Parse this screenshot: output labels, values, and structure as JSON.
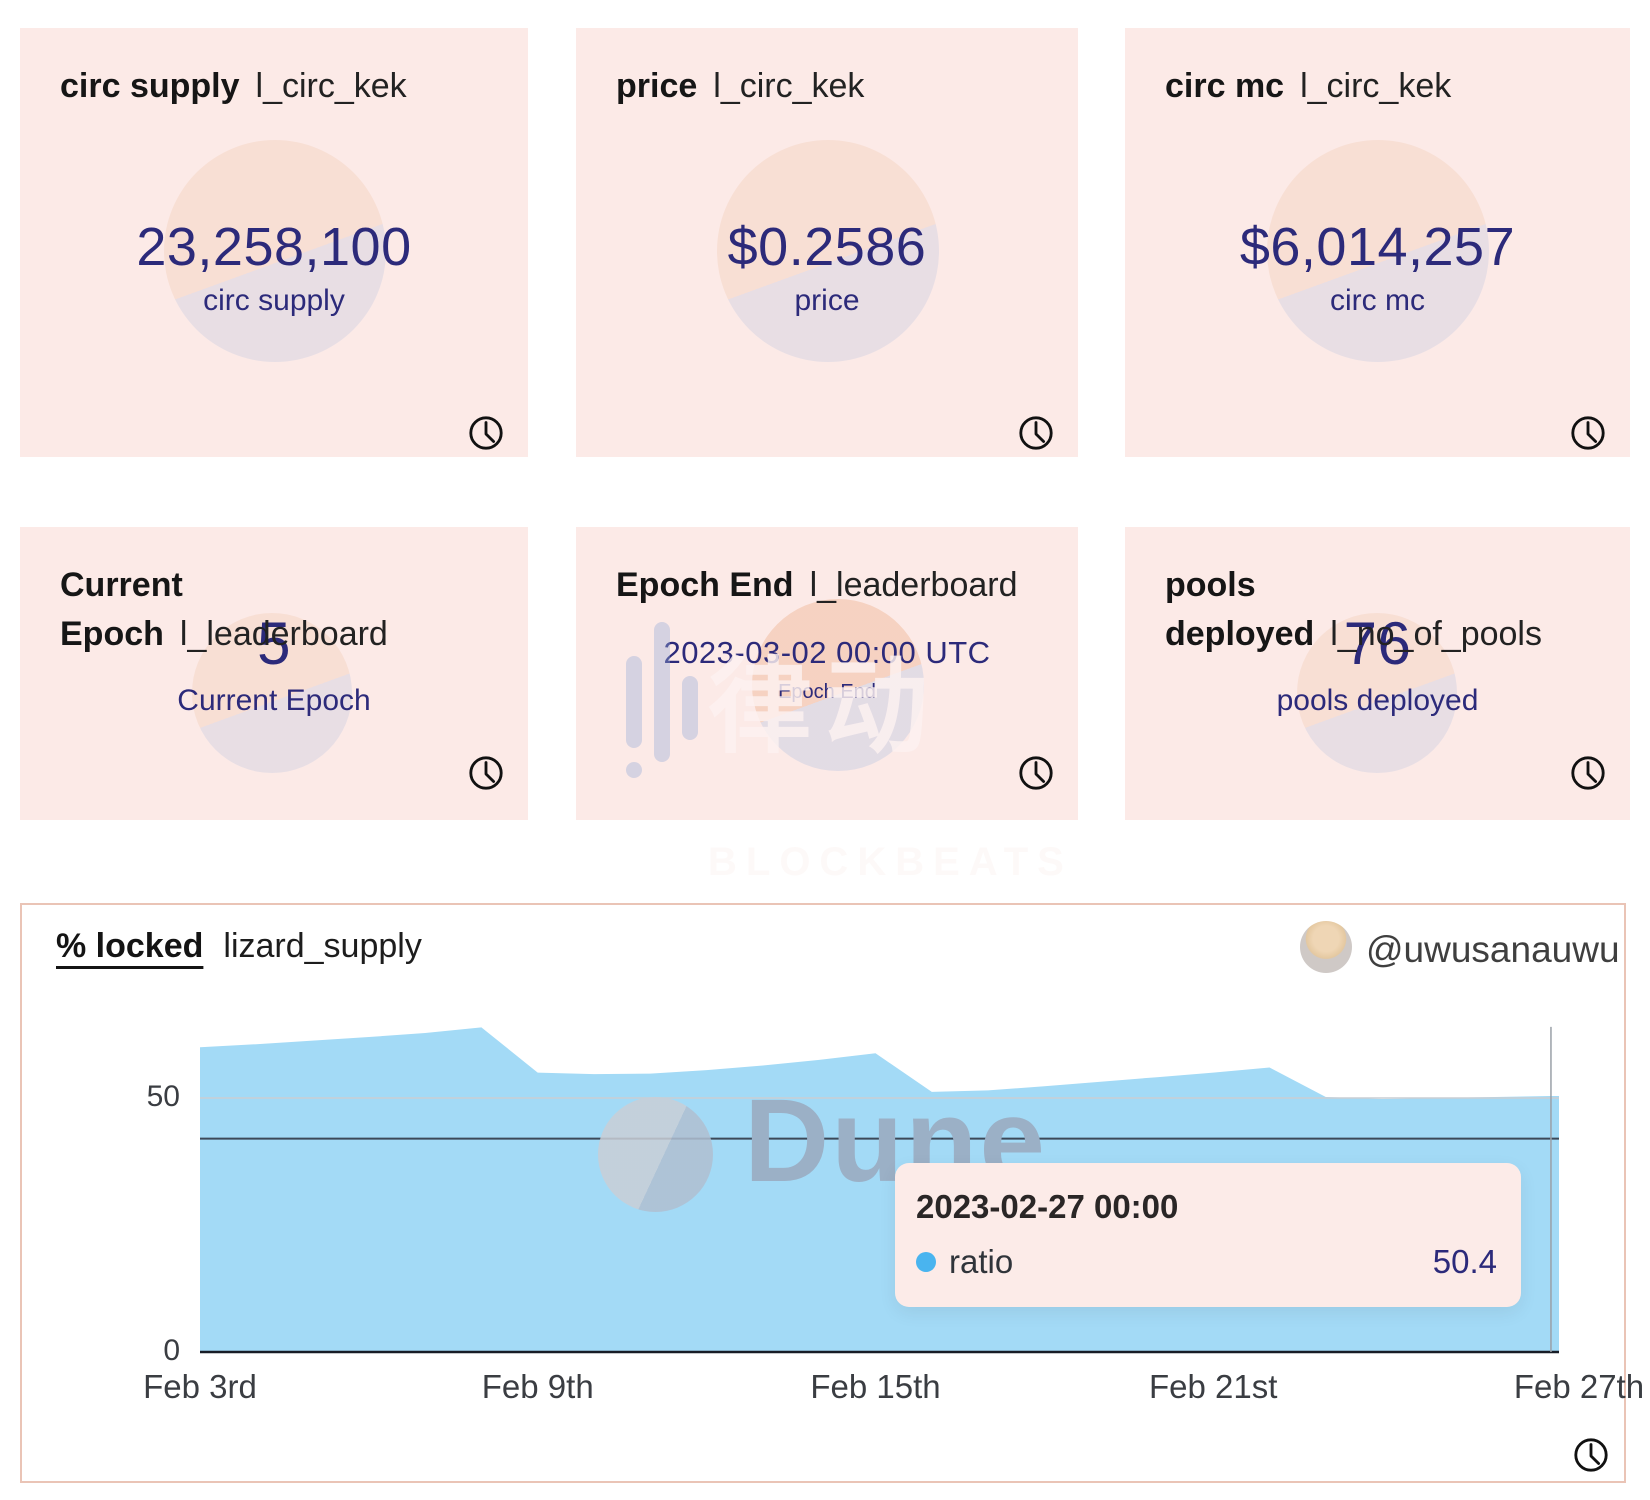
{
  "cards": [
    {
      "title": "circ supply",
      "slug": "l_circ_kek",
      "value": "23,258,100",
      "label": "circ supply"
    },
    {
      "title": "price",
      "slug": "l_circ_kek",
      "value": "$0.2586",
      "label": "price"
    },
    {
      "title": "circ mc",
      "slug": "l_circ_kek",
      "value": "$6,014,257",
      "label": "circ mc"
    },
    {
      "title": "Current\nEpoch",
      "slug": "l_leaderboard",
      "value": "5",
      "label": "Current Epoch"
    },
    {
      "title": "Epoch End",
      "slug": "l_leaderboard",
      "value": "2023-03-02 00:00 UTC",
      "label": "Epoch End"
    },
    {
      "title": "pools\ndeployed",
      "slug": "l_no_of_pools",
      "value": "76",
      "label": "pools deployed"
    }
  ],
  "panel": {
    "title": "% locked",
    "slug": "lizard_supply",
    "author_handle": "@uwusanauwu"
  },
  "tooltip": {
    "date": "2023-02-27 00:00",
    "series": "ratio",
    "value": "50.4"
  },
  "watermarks": {
    "dune": "Dune",
    "blockbeats_cn": "律动",
    "blockbeats_en": "BLOCKBEATS"
  },
  "colors": {
    "card_bg": "#fceae7",
    "value_text": "#2c2a7a",
    "area": "#a3daf6",
    "panel_border": "#eac4b6",
    "tooltip_bg": "#fcebe8",
    "series_dot": "#49b4ef"
  },
  "chart_data": {
    "type": "area",
    "title": "% locked",
    "series_name": "ratio",
    "x": [
      "2023-02-03",
      "2023-02-04",
      "2023-02-05",
      "2023-02-06",
      "2023-02-07",
      "2023-02-08",
      "2023-02-09",
      "2023-02-10",
      "2023-02-11",
      "2023-02-12",
      "2023-02-13",
      "2023-02-14",
      "2023-02-15",
      "2023-02-16",
      "2023-02-17",
      "2023-02-18",
      "2023-02-19",
      "2023-02-20",
      "2023-02-21",
      "2023-02-22",
      "2023-02-23",
      "2023-02-24",
      "2023-02-25",
      "2023-02-26",
      "2023-02-27"
    ],
    "values": [
      60.0,
      60.6,
      61.3,
      62.0,
      62.8,
      63.9,
      55.0,
      54.7,
      54.8,
      55.5,
      56.4,
      57.5,
      58.8,
      51.2,
      51.5,
      52.3,
      53.2,
      54.1,
      55.0,
      56.0,
      50.2,
      49.8,
      50.0,
      50.2,
      50.4
    ],
    "x_tick_labels": [
      "Feb 3rd",
      "Feb 9th",
      "Feb 15th",
      "Feb 21st",
      "Feb 27th"
    ],
    "x_tick_days": [
      0,
      6,
      12,
      18,
      24
    ],
    "yticks": [
      {
        "v": 0,
        "label": "0"
      },
      {
        "v": 50,
        "label": "50"
      }
    ],
    "extra_hline_value": 42,
    "ylim": [
      0,
      64
    ],
    "grid": "horizontal only",
    "legend_position": "none (tooltip only)",
    "hover_index": 24,
    "hovered_point": {
      "date": "2023-02-27 00:00",
      "series": "ratio",
      "value": 50.4
    }
  }
}
